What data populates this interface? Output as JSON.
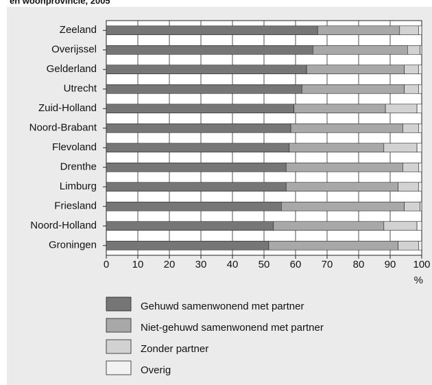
{
  "chart_data": {
    "type": "stacked-bar-horizontal",
    "title": "en woonprovincie, 2005",
    "x_label": "%",
    "categories": [
      "Zeeland",
      "Overijssel",
      "Gelderland",
      "Utrecht",
      "Zuid-Holland",
      "Noord-Brabant",
      "Flevoland",
      "Drenthe",
      "Limburg",
      "Friesland",
      "Noord-Holland",
      "Groningen"
    ],
    "series": [
      {
        "name": "Gehuwd samenwonend met partner",
        "color": "#767676",
        "values": [
          67,
          65.5,
          63.5,
          62,
          59.5,
          58.5,
          58,
          57,
          57,
          55.5,
          53,
          51.5
        ]
      },
      {
        "name": "Niet-gehuwd samenwonend met partner",
        "color": "#a8a8a8",
        "values": [
          26,
          30,
          31,
          32.5,
          29,
          35.5,
          30,
          37,
          35.5,
          39,
          35,
          41
        ]
      },
      {
        "name": "Zonder partner",
        "color": "#d2d2d2",
        "values": [
          6,
          4,
          4.5,
          4.5,
          10,
          5,
          10.5,
          5,
          6.5,
          5,
          10.5,
          6.5
        ]
      },
      {
        "name": "Overig",
        "color": "#f2f2f2",
        "values": [
          1,
          0.5,
          1,
          1,
          1.5,
          1,
          1.5,
          1,
          1,
          0.5,
          1.5,
          1
        ]
      }
    ],
    "xlim": [
      0,
      100
    ],
    "xticks": [
      0,
      10,
      20,
      30,
      40,
      50,
      60,
      70,
      80,
      90,
      100
    ],
    "grid": true
  }
}
